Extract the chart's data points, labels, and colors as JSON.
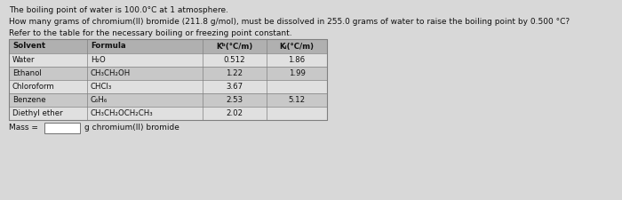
{
  "title_line1": "The boiling point of water is 100.0°C at 1 atmosphere.",
  "title_line2": "How many grams of chromium(II) bromide (211.8 g/mol), must be dissolved in 255.0 grams of water to raise the boiling point by 0.500 °C?",
  "title_line3": "Refer to the table for the necessary boiling or freezing point constant.",
  "col_headers": [
    "Solvent",
    "Formula",
    "Kᵇ(°C/m)",
    "Kᵢ(°C/m)"
  ],
  "rows": [
    [
      "Water",
      "H₂O",
      "0.512",
      "1.86"
    ],
    [
      "Ethanol",
      "CH₃CH₂OH",
      "1.22",
      "1.99"
    ],
    [
      "Chloroform",
      "CHCl₃",
      "3.67",
      ""
    ],
    [
      "Benzene",
      "C₆H₆",
      "2.53",
      "5.12"
    ],
    [
      "Diethyl ether",
      "CH₃CH₂OCH₂CH₃",
      "2.02",
      ""
    ]
  ],
  "mass_label": "Mass =",
  "mass_unit": "g chromium(II) bromide",
  "bg_color": "#d8d8d8",
  "header_bg": "#b0b0b0",
  "row_bg_alt": "#c8c8c8",
  "row_bg_norm": "#e0e0e0",
  "table_border": "#808080",
  "text_color": "#111111",
  "font_size_title": 6.5,
  "font_size_table": 6.2
}
